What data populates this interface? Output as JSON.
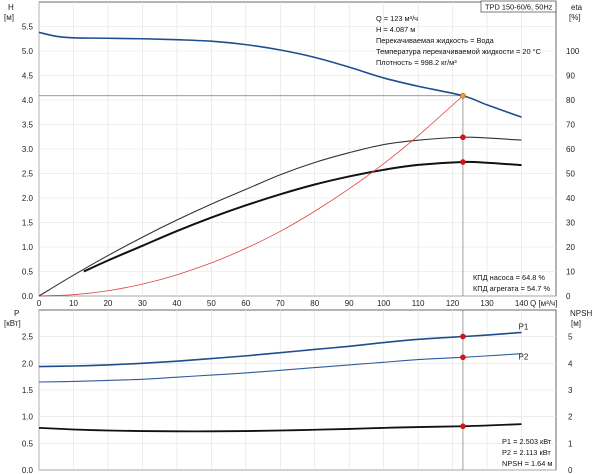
{
  "chart_data": {
    "type": "line",
    "model": "TPD 150-60/6, 50Hz",
    "duty_point": {
      "Q": 123,
      "H": 4.087
    },
    "info_lines": [
      "Q = 123 м³/ч",
      "H = 4.087 м",
      "Перекачиваемая жидкость = Вода",
      "Температура перекачиваемой жидкости = 20 °C",
      "Плотность = 998.2 кг/м³"
    ],
    "efficiency_notes": [
      "КПД насоса = 64.8 %",
      "КПД агрегата = 54.7 %"
    ],
    "power_notes": [
      "P1 = 2.503 кВт",
      "P2 = 2.113 кВт",
      "NPSH = 1.64 м"
    ],
    "x_axis": {
      "label": "Q [м³/ч]",
      "range": [
        0,
        150
      ],
      "ticks": [
        0,
        10,
        20,
        30,
        40,
        50,
        60,
        70,
        80,
        90,
        100,
        110,
        120,
        130,
        140
      ]
    },
    "top_panel": {
      "left_axis": {
        "label": "H",
        "unit": "[м]",
        "range": [
          0,
          6
        ],
        "ticks": [
          "0.0",
          "0.5",
          "1.0",
          "1.5",
          "2.0",
          "2.5",
          "3.0",
          "3.5",
          "4.0",
          "4.5",
          "5.0",
          "5.5"
        ]
      },
      "right_axis": {
        "label": "eta",
        "unit": "[%]",
        "range": [
          0,
          120
        ],
        "ticks": [
          "0",
          "10",
          "20",
          "30",
          "40",
          "50",
          "60",
          "70",
          "80",
          "90",
          "100"
        ]
      },
      "series": [
        {
          "id": "head",
          "axis": "left",
          "color": "#1f4e8c",
          "points": [
            [
              0,
              5.38
            ],
            [
              5,
              5.3
            ],
            [
              10,
              5.27
            ],
            [
              20,
              5.26
            ],
            [
              30,
              5.25
            ],
            [
              40,
              5.23
            ],
            [
              50,
              5.2
            ],
            [
              60,
              5.13
            ],
            [
              70,
              5.02
            ],
            [
              80,
              4.87
            ],
            [
              90,
              4.67
            ],
            [
              100,
              4.45
            ],
            [
              110,
              4.28
            ],
            [
              123,
              4.087
            ],
            [
              130,
              3.9
            ],
            [
              140,
              3.65
            ]
          ]
        },
        {
          "id": "efficiency-pump",
          "axis": "right",
          "color": "#333333",
          "points": [
            [
              0,
              0
            ],
            [
              10,
              8.5
            ],
            [
              20,
              16.5
            ],
            [
              30,
              24
            ],
            [
              40,
              31
            ],
            [
              50,
              37.5
            ],
            [
              60,
              43.5
            ],
            [
              70,
              49.5
            ],
            [
              80,
              54.5
            ],
            [
              90,
              58.5
            ],
            [
              100,
              61.8
            ],
            [
              110,
              63.6
            ],
            [
              123,
              64.8
            ],
            [
              130,
              64.5
            ],
            [
              140,
              63.6
            ]
          ]
        },
        {
          "id": "efficiency-unit",
          "axis": "right",
          "color": "#111111",
          "points": [
            [
              13,
              10
            ],
            [
              20,
              14.5
            ],
            [
              30,
              20.5
            ],
            [
              40,
              26.5
            ],
            [
              50,
              32
            ],
            [
              60,
              37
            ],
            [
              70,
              41.5
            ],
            [
              80,
              45.5
            ],
            [
              90,
              48.8
            ],
            [
              100,
              51.5
            ],
            [
              110,
              53.5
            ],
            [
              123,
              54.7
            ],
            [
              130,
              54.4
            ],
            [
              140,
              53.4
            ]
          ]
        },
        {
          "id": "system-curve",
          "axis": "left",
          "color": "#e04040",
          "points": [
            [
              0,
              0
            ],
            [
              10,
              0.027
            ],
            [
              20,
              0.108
            ],
            [
              30,
              0.243
            ],
            [
              40,
              0.432
            ],
            [
              50,
              0.675
            ],
            [
              60,
              0.972
            ],
            [
              70,
              1.32
            ],
            [
              80,
              1.73
            ],
            [
              90,
              2.19
            ],
            [
              100,
              2.7
            ],
            [
              110,
              3.27
            ],
            [
              123,
              4.087
            ]
          ]
        }
      ],
      "markers": [
        {
          "axis": "left",
          "x": 123,
          "y": 4.087,
          "color": "#f0a020"
        },
        {
          "axis": "right",
          "x": 123,
          "y": 64.8,
          "color": "#e01010"
        },
        {
          "axis": "right",
          "x": 123,
          "y": 54.7,
          "color": "#e01010"
        }
      ]
    },
    "bottom_panel": {
      "left_axis": {
        "label": "P",
        "unit": "[кВт]",
        "range": [
          0,
          3
        ],
        "ticks": [
          "0.0",
          "0.5",
          "1.0",
          "1.5",
          "2.0",
          "2.5"
        ]
      },
      "right_axis": {
        "label": "NPSH",
        "unit": "[м]",
        "range": [
          0,
          6
        ],
        "ticks": [
          "0",
          "1",
          "2",
          "3",
          "4",
          "5"
        ]
      },
      "series": [
        {
          "id": "P1",
          "label": "P1",
          "axis": "left",
          "color": "#1f4e8c",
          "points": [
            [
              0,
              1.94
            ],
            [
              10,
              1.95
            ],
            [
              20,
              1.97
            ],
            [
              30,
              2.0
            ],
            [
              40,
              2.04
            ],
            [
              50,
              2.09
            ],
            [
              60,
              2.14
            ],
            [
              70,
              2.2
            ],
            [
              80,
              2.26
            ],
            [
              90,
              2.32
            ],
            [
              100,
              2.39
            ],
            [
              110,
              2.45
            ],
            [
              123,
              2.503
            ],
            [
              130,
              2.53
            ],
            [
              140,
              2.58
            ]
          ]
        },
        {
          "id": "P2",
          "label": "P2",
          "axis": "left",
          "color": "#2e5c9a",
          "points": [
            [
              0,
              1.65
            ],
            [
              10,
              1.66
            ],
            [
              20,
              1.68
            ],
            [
              30,
              1.7
            ],
            [
              40,
              1.74
            ],
            [
              50,
              1.78
            ],
            [
              60,
              1.82
            ],
            [
              70,
              1.87
            ],
            [
              80,
              1.92
            ],
            [
              90,
              1.97
            ],
            [
              100,
              2.02
            ],
            [
              110,
              2.07
            ],
            [
              123,
              2.113
            ],
            [
              130,
              2.14
            ],
            [
              140,
              2.18
            ]
          ]
        },
        {
          "id": "NPSH",
          "axis": "right",
          "color": "#111111",
          "points": [
            [
              0,
              1.58
            ],
            [
              10,
              1.52
            ],
            [
              20,
              1.48
            ],
            [
              30,
              1.46
            ],
            [
              40,
              1.45
            ],
            [
              50,
              1.45
            ],
            [
              60,
              1.46
            ],
            [
              70,
              1.48
            ],
            [
              80,
              1.51
            ],
            [
              90,
              1.54
            ],
            [
              100,
              1.58
            ],
            [
              110,
              1.61
            ],
            [
              123,
              1.64
            ],
            [
              130,
              1.67
            ],
            [
              140,
              1.72
            ]
          ]
        }
      ],
      "markers": [
        {
          "axis": "left",
          "x": 123,
          "y": 2.503,
          "color": "#e01010"
        },
        {
          "axis": "left",
          "x": 123,
          "y": 2.113,
          "color": "#e01010"
        },
        {
          "axis": "right",
          "x": 123,
          "y": 1.64,
          "color": "#e01010"
        }
      ]
    }
  }
}
